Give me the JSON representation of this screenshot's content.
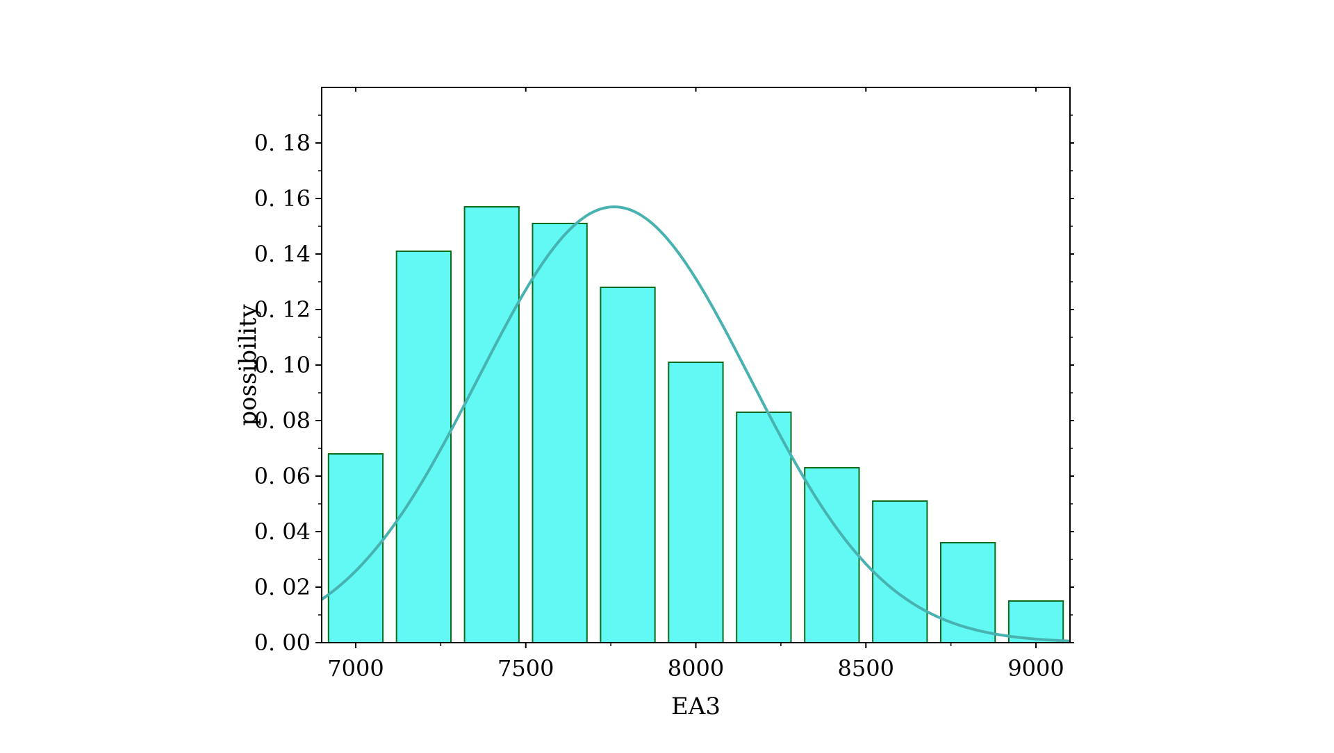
{
  "chart_data": {
    "type": "bar",
    "title": "",
    "xlabel": "EA3",
    "ylabel": "possibility",
    "xlim": [
      6900,
      9100
    ],
    "ylim": [
      0,
      0.2
    ],
    "x_ticks": [
      {
        "value": 7000,
        "label": "7000"
      },
      {
        "value": 7500,
        "label": "7500"
      },
      {
        "value": 8000,
        "label": "8000"
      },
      {
        "value": 8500,
        "label": "8500"
      },
      {
        "value": 9000,
        "label": "9000"
      }
    ],
    "y_ticks": [
      {
        "value": 0.0,
        "label": "0. 00"
      },
      {
        "value": 0.02,
        "label": "0. 02"
      },
      {
        "value": 0.04,
        "label": "0. 04"
      },
      {
        "value": 0.06,
        "label": "0. 06"
      },
      {
        "value": 0.08,
        "label": "0. 08"
      },
      {
        "value": 0.1,
        "label": "0. 10"
      },
      {
        "value": 0.12,
        "label": "0. 12"
      },
      {
        "value": 0.14,
        "label": "0. 14"
      },
      {
        "value": 0.16,
        "label": "0. 16"
      },
      {
        "value": 0.18,
        "label": "0. 18"
      }
    ],
    "bars": [
      {
        "x0": 6920,
        "x1": 7080,
        "value": 0.068
      },
      {
        "x0": 7120,
        "x1": 7280,
        "value": 0.141
      },
      {
        "x0": 7320,
        "x1": 7480,
        "value": 0.157
      },
      {
        "x0": 7520,
        "x1": 7680,
        "value": 0.151
      },
      {
        "x0": 7720,
        "x1": 7880,
        "value": 0.128
      },
      {
        "x0": 7920,
        "x1": 8080,
        "value": 0.101
      },
      {
        "x0": 8120,
        "x1": 8280,
        "value": 0.083
      },
      {
        "x0": 8320,
        "x1": 8480,
        "value": 0.063
      },
      {
        "x0": 8520,
        "x1": 8680,
        "value": 0.051
      },
      {
        "x0": 8720,
        "x1": 8880,
        "value": 0.036
      },
      {
        "x0": 8920,
        "x1": 9080,
        "value": 0.015
      }
    ],
    "fit_curve": {
      "type": "normal",
      "mean": 7760,
      "sd": 400,
      "peak": 0.157,
      "x_range": [
        6900,
        9100
      ]
    },
    "grid": false,
    "legend": "none",
    "colors": {
      "bar_fill": "#62F8F4",
      "bar_edge": "#0A6E1E",
      "curve": "#48B2B0",
      "axes": "#000000"
    }
  }
}
